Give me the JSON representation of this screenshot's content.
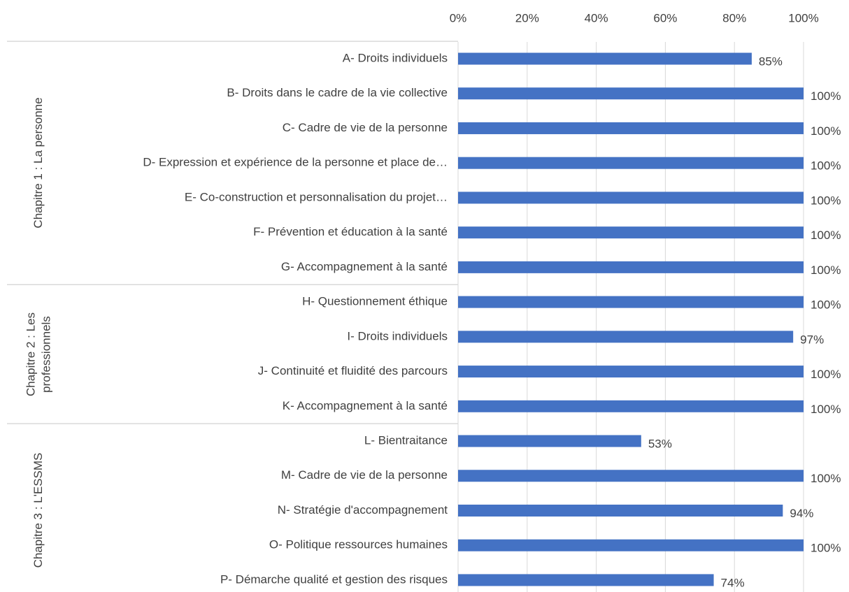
{
  "chart_data": {
    "type": "bar",
    "orientation": "horizontal",
    "color": "#4472c4",
    "grid": true,
    "xlim": [
      0,
      100
    ],
    "xticks": [
      {
        "value": 0,
        "label": "0%"
      },
      {
        "value": 20,
        "label": "20%"
      },
      {
        "value": 40,
        "label": "40%"
      },
      {
        "value": 60,
        "label": "60%"
      },
      {
        "value": 80,
        "label": "80%"
      },
      {
        "value": 100,
        "label": "100%"
      }
    ],
    "groups": [
      {
        "name": "Chapitre 1 : La personne",
        "categories": [
          "A- Droits individuels",
          "B- Droits dans le cadre de la vie collective",
          "C- Cadre de vie de la personne",
          "D- Expression et expérience de la personne et place de…",
          "E- Co-construction et personnalisation du projet…",
          "F- Prévention et éducation à la santé",
          "G- Accompagnement à la santé"
        ],
        "values": [
          85,
          100,
          100,
          100,
          100,
          100,
          100
        ],
        "value_labels": [
          "85%",
          "100%",
          "100%",
          "100%",
          "100%",
          "100%",
          "100%"
        ]
      },
      {
        "name": "Chapitre 2 : Les professionnels",
        "categories": [
          "H- Questionnement éthique",
          "I- Droits individuels",
          "J- Continuité et fluidité des parcours",
          "K- Accompagnement à la santé"
        ],
        "values": [
          100,
          97,
          100,
          100
        ],
        "value_labels": [
          "100%",
          "97%",
          "100%",
          "100%"
        ]
      },
      {
        "name": "Chapitre 3 : L'ESSMS",
        "categories": [
          "L- Bientraitance",
          "M- Cadre de vie de la personne",
          "N- Stratégie d'accompagnement",
          "O- Politique ressources humaines",
          "P- Démarche qualité et gestion des risques"
        ],
        "values": [
          53,
          100,
          94,
          100,
          74
        ],
        "value_labels": [
          "53%",
          "100%",
          "94%",
          "100%",
          "74%"
        ]
      }
    ]
  }
}
